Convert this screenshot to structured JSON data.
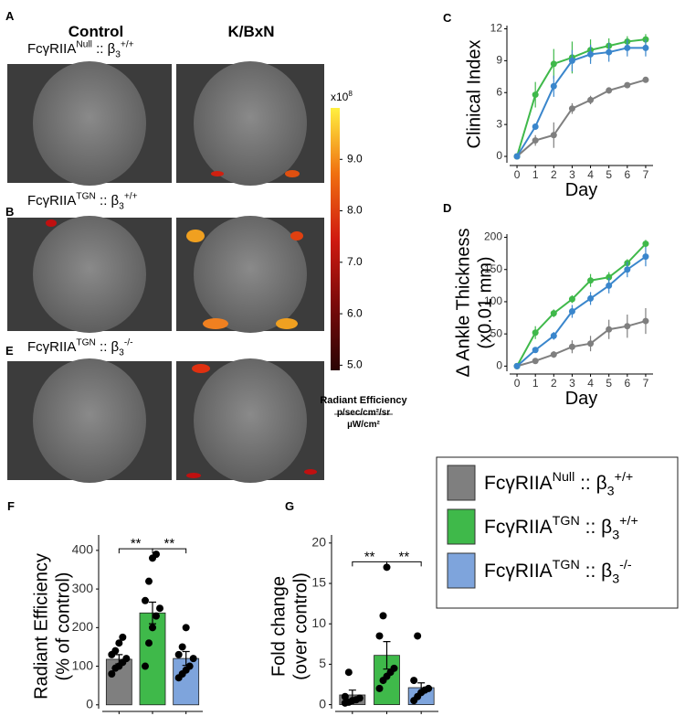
{
  "figure": {
    "panel_labels": [
      "A",
      "B",
      "E",
      "C",
      "D",
      "F",
      "G"
    ],
    "column_titles": [
      "Control",
      "K/BxN"
    ],
    "row_labels": [
      [
        {
          "t": "FcγRIIA"
        },
        {
          "t": "Null",
          "s": "sup"
        },
        {
          "t": " :: β"
        },
        {
          "t": "3",
          "s": "sub"
        },
        {
          "t": "+/+",
          "s": "sup"
        }
      ],
      [
        {
          "t": "FcγRIIA"
        },
        {
          "t": "TGN",
          "s": "sup"
        },
        {
          "t": " :: β"
        },
        {
          "t": "3",
          "s": "sub"
        },
        {
          "t": "+/+",
          "s": "sup"
        }
      ],
      [
        {
          "t": "FcγRIIA"
        },
        {
          "t": "TGN",
          "s": "sup"
        },
        {
          "t": " :: β"
        },
        {
          "t": "3",
          "s": "sub"
        },
        {
          "t": "-/-",
          "s": "sup"
        }
      ]
    ]
  },
  "chart_data": [
    {
      "type": "colorbar",
      "exponent_label": [
        {
          "t": "x10"
        },
        {
          "t": "8",
          "s": "sup"
        }
      ],
      "ylim": [
        4.9,
        10
      ],
      "yticks": [
        {
          "value": 5,
          "label": "5.0"
        },
        {
          "value": 6,
          "label": "6.0"
        },
        {
          "value": 7,
          "label": "7.0"
        },
        {
          "value": 8,
          "label": "8.0"
        },
        {
          "value": 9,
          "label": "9.0"
        }
      ],
      "colors": [
        "#2a0505",
        "#7a0a0a",
        "#d01a10",
        "#f07010",
        "#fff040"
      ],
      "label_lines": [
        "Radiant Efficiency",
        "p/sec/cm²/sr",
        "µW/cm²"
      ]
    },
    {
      "type": "line",
      "ylabel": [
        "Clinical Index"
      ],
      "xlabel": "Day",
      "x": [
        0,
        1,
        2,
        3,
        4,
        5,
        6,
        7
      ],
      "xlim": [
        -0.4,
        7.4
      ],
      "xticks": [
        0,
        1,
        2,
        3,
        4,
        5,
        6,
        7
      ],
      "ylim": [
        -0.6,
        12.3
      ],
      "yticks": [
        0,
        3,
        6,
        9,
        12
      ],
      "series": [
        {
          "name": [
            {
              "t": "FcγRIIA"
            },
            {
              "t": "Null",
              "s": "sup"
            },
            {
              "t": " :: β"
            },
            {
              "t": "3",
              "s": "sub"
            },
            {
              "t": "+/+",
              "s": "sup"
            }
          ],
          "color": "#7f7f7f",
          "values": [
            0,
            1.5,
            2,
            4.5,
            5.3,
            6.2,
            6.7,
            7.2
          ],
          "errors": [
            0.3,
            0.5,
            1.2,
            0.5,
            0.4,
            0.3,
            0.2,
            0.2
          ]
        },
        {
          "name": [
            {
              "t": "FcγRIIA"
            },
            {
              "t": "TGN",
              "s": "sup"
            },
            {
              "t": " :: β"
            },
            {
              "t": "3",
              "s": "sub"
            },
            {
              "t": "+/+",
              "s": "sup"
            }
          ],
          "color": "#3fb94a",
          "values": [
            0,
            5.8,
            8.7,
            9.3,
            10,
            10.4,
            10.8,
            11
          ],
          "errors": [
            0,
            1.2,
            1.4,
            1.5,
            1,
            0.7,
            0.5,
            0.5
          ]
        },
        {
          "name": [
            {
              "t": "FcγRIIA"
            },
            {
              "t": "TGN",
              "s": "sup"
            },
            {
              "t": " :: β"
            },
            {
              "t": "3",
              "s": "sub"
            },
            {
              "t": "-/-",
              "s": "sup"
            }
          ],
          "color": "#3a86cc",
          "values": [
            0,
            2.8,
            6.6,
            9,
            9.6,
            9.8,
            10.2,
            10.2
          ],
          "errors": [
            0,
            0.3,
            1,
            1,
            0.9,
            0.9,
            0.8,
            0.8
          ]
        }
      ]
    },
    {
      "type": "line",
      "ylabel": [
        "Δ Ankle Thickness",
        "(x0.01 mm)"
      ],
      "xlabel": "Day",
      "x": [
        0,
        1,
        2,
        3,
        4,
        5,
        6,
        7
      ],
      "xlim": [
        -0.4,
        7.4
      ],
      "xticks": [
        0,
        1,
        2,
        3,
        4,
        5,
        6,
        7
      ],
      "ylim": [
        -8,
        205
      ],
      "yticks": [
        0,
        50,
        100,
        150,
        200
      ],
      "series": [
        {
          "color": "#7f7f7f",
          "values": [
            0,
            8,
            18,
            30,
            35,
            57,
            62,
            70
          ],
          "errors": [
            0,
            3,
            5,
            10,
            12,
            15,
            18,
            20
          ]
        },
        {
          "color": "#3fb94a",
          "values": [
            0,
            52,
            82,
            104,
            133,
            138,
            160,
            190
          ],
          "errors": [
            0,
            10,
            6,
            6,
            10,
            8,
            6,
            6
          ]
        },
        {
          "color": "#3a86cc",
          "values": [
            0,
            25,
            47,
            85,
            105,
            125,
            150,
            170
          ],
          "errors": [
            0,
            4,
            6,
            10,
            10,
            12,
            12,
            15
          ]
        }
      ]
    },
    {
      "type": "bar",
      "ylabel": [
        "Radiant Efficiency",
        "(% of control)"
      ],
      "categories": [
        null,
        null,
        null
      ],
      "colors": [
        "#7f7f7f",
        "#3fb94a",
        "#7ea4dc"
      ],
      "values": [
        118,
        238,
        120
      ],
      "errors": [
        12,
        28,
        18
      ],
      "points": [
        [
          80,
          95,
          100,
          110,
          120,
          130,
          140,
          160,
          175
        ],
        [
          100,
          160,
          200,
          230,
          250,
          270,
          320,
          380,
          390
        ],
        [
          70,
          80,
          90,
          100,
          120,
          130,
          150,
          200
        ]
      ],
      "ylim": [
        -10,
        440
      ],
      "yticks": [
        0,
        100,
        200,
        300,
        400
      ],
      "significance": [
        {
          "between": [
            0,
            1
          ],
          "label": "**"
        },
        {
          "between": [
            1,
            2
          ],
          "label": "**"
        }
      ]
    },
    {
      "type": "bar",
      "ylabel": [
        "Fold change",
        "(over control)"
      ],
      "categories": [
        null,
        null,
        null
      ],
      "colors": [
        "#7f7f7f",
        "#3fb94a",
        "#7ea4dc"
      ],
      "values": [
        1.2,
        6.1,
        2.1
      ],
      "errors": [
        0.6,
        1.7,
        0.6
      ],
      "points": [
        [
          0.2,
          0.3,
          0.5,
          0.6,
          0.8,
          1,
          4
        ],
        [
          2,
          3,
          3.5,
          4,
          4.5,
          8.5,
          11,
          17
        ],
        [
          0.5,
          1,
          1.5,
          1.8,
          2,
          3,
          8.5
        ]
      ],
      "ylim": [
        -0.5,
        21
      ],
      "yticks": [
        0,
        5,
        10,
        15,
        20
      ],
      "significance": [
        {
          "between": [
            0,
            1
          ],
          "label": "**"
        },
        {
          "between": [
            1,
            2
          ],
          "label": "**"
        }
      ]
    }
  ]
}
